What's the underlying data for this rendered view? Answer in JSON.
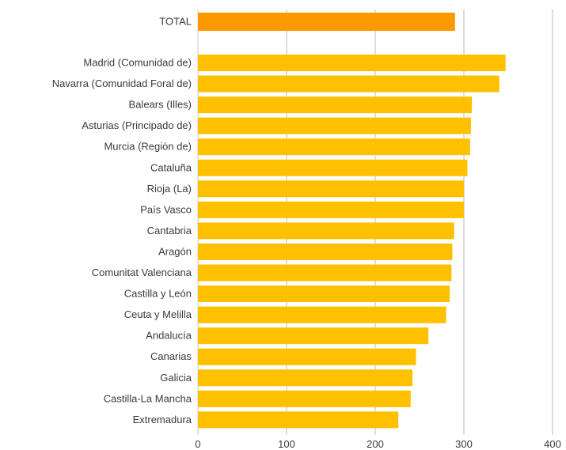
{
  "chart_data": {
    "type": "bar",
    "orientation": "horizontal",
    "title": "",
    "xlabel": "",
    "ylabel": "",
    "xlim": [
      0,
      400
    ],
    "xticks": [
      0,
      100,
      200,
      300,
      400
    ],
    "grid": true,
    "colors": {
      "total": "#FF9900",
      "regions": "#FFC000"
    },
    "total": {
      "label": "TOTAL",
      "value": 290
    },
    "categories": [
      "Madrid (Comunidad de)",
      "Navarra (Comunidad Foral de)",
      "Balears (Illes)",
      "Asturias (Principado de)",
      "Murcia (Región de)",
      "Cataluña",
      "Rioja (La)",
      "País Vasco",
      "Cantabria",
      "Aragón",
      "Comunitat Valenciana",
      "Castilla y León",
      "Ceuta y Melilla",
      "Andalucía",
      "Canarias",
      "Galicia",
      "Castilla-La Mancha",
      "Extremadura"
    ],
    "values": [
      347,
      340,
      309,
      308,
      307,
      304,
      300,
      300,
      289,
      287,
      286,
      284,
      280,
      260,
      246,
      242,
      240,
      226
    ]
  }
}
